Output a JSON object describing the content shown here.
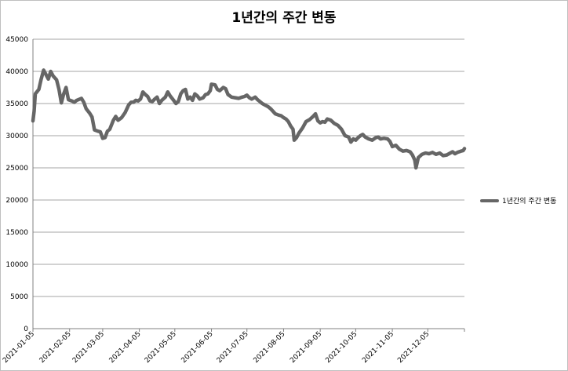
{
  "chart_data": {
    "type": "line",
    "title": "1년간의 주간 변동",
    "xlabel": "",
    "ylabel": "",
    "ylim": [
      0,
      45000
    ],
    "y_ticks": [
      0,
      5000,
      10000,
      15000,
      20000,
      25000,
      30000,
      35000,
      40000,
      45000
    ],
    "x_ticks": [
      "2021-01-05",
      "2021-02-05",
      "2021-03-05",
      "2021-04-05",
      "2021-05-05",
      "2021-06-05",
      "2021-07-05",
      "2021-08-05",
      "2021-09-05",
      "2021-10-05",
      "2021-11-05",
      "2021-12-05"
    ],
    "x_range": [
      "2021-01-05",
      "2022-01-05"
    ],
    "grid": "horizontal",
    "legend": "right",
    "colors": {
      "line": "#666666",
      "grid": "#a6a6a6",
      "axis": "#808080"
    },
    "series": [
      {
        "name": "1년간의 주간 변동",
        "points": [
          [
            "2021-01-05",
            32300
          ],
          [
            "2021-01-06",
            33800
          ],
          [
            "2021-01-07",
            36500
          ],
          [
            "2021-01-10",
            37200
          ],
          [
            "2021-01-12",
            38800
          ],
          [
            "2021-01-14",
            40200
          ],
          [
            "2021-01-16",
            39500
          ],
          [
            "2021-01-18",
            38800
          ],
          [
            "2021-01-20",
            40000
          ],
          [
            "2021-01-22",
            39300
          ],
          [
            "2021-01-25",
            38700
          ],
          [
            "2021-01-27",
            37200
          ],
          [
            "2021-01-29",
            35100
          ],
          [
            "2021-01-31",
            36500
          ],
          [
            "2021-02-02",
            37500
          ],
          [
            "2021-02-04",
            35600
          ],
          [
            "2021-02-07",
            35400
          ],
          [
            "2021-02-09",
            35200
          ],
          [
            "2021-02-11",
            35500
          ],
          [
            "2021-02-15",
            35800
          ],
          [
            "2021-02-17",
            35200
          ],
          [
            "2021-02-19",
            34200
          ],
          [
            "2021-02-22",
            33500
          ],
          [
            "2021-02-24",
            32900
          ],
          [
            "2021-02-26",
            30900
          ],
          [
            "2021-03-01",
            30700
          ],
          [
            "2021-03-03",
            30600
          ],
          [
            "2021-03-05",
            29600
          ],
          [
            "2021-03-07",
            29700
          ],
          [
            "2021-03-09",
            30700
          ],
          [
            "2021-03-11",
            31000
          ],
          [
            "2021-03-14",
            32400
          ],
          [
            "2021-03-16",
            33000
          ],
          [
            "2021-03-18",
            32400
          ],
          [
            "2021-03-21",
            32800
          ],
          [
            "2021-03-24",
            33600
          ],
          [
            "2021-03-27",
            34800
          ],
          [
            "2021-03-29",
            35200
          ],
          [
            "2021-03-31",
            35200
          ],
          [
            "2021-04-02",
            35500
          ],
          [
            "2021-04-04",
            35400
          ],
          [
            "2021-04-06",
            35700
          ],
          [
            "2021-04-08",
            36800
          ],
          [
            "2021-04-10",
            36400
          ],
          [
            "2021-04-12",
            36100
          ],
          [
            "2021-04-14",
            35400
          ],
          [
            "2021-04-16",
            35300
          ],
          [
            "2021-04-18",
            35700
          ],
          [
            "2021-04-20",
            36000
          ],
          [
            "2021-04-22",
            35000
          ],
          [
            "2021-04-24",
            35500
          ],
          [
            "2021-04-27",
            36000
          ],
          [
            "2021-04-29",
            36800
          ],
          [
            "2021-05-01",
            36200
          ],
          [
            "2021-05-04",
            35500
          ],
          [
            "2021-05-06",
            35000
          ],
          [
            "2021-05-08",
            35300
          ],
          [
            "2021-05-10",
            36500
          ],
          [
            "2021-05-12",
            37000
          ],
          [
            "2021-05-14",
            37200
          ],
          [
            "2021-05-16",
            35700
          ],
          [
            "2021-05-18",
            36000
          ],
          [
            "2021-05-20",
            35500
          ],
          [
            "2021-05-22",
            36500
          ],
          [
            "2021-05-24",
            36200
          ],
          [
            "2021-05-26",
            35700
          ],
          [
            "2021-05-29",
            35900
          ],
          [
            "2021-05-31",
            36400
          ],
          [
            "2021-06-02",
            36500
          ],
          [
            "2021-06-04",
            37000
          ],
          [
            "2021-06-05",
            38000
          ],
          [
            "2021-06-08",
            37900
          ],
          [
            "2021-06-10",
            37200
          ],
          [
            "2021-06-12",
            37000
          ],
          [
            "2021-06-15",
            37500
          ],
          [
            "2021-06-17",
            37300
          ],
          [
            "2021-06-19",
            36400
          ],
          [
            "2021-06-22",
            36000
          ],
          [
            "2021-06-25",
            35900
          ],
          [
            "2021-06-28",
            35800
          ],
          [
            "2021-07-01",
            36000
          ],
          [
            "2021-07-03",
            36100
          ],
          [
            "2021-07-05",
            36300
          ],
          [
            "2021-07-07",
            35900
          ],
          [
            "2021-07-09",
            35700
          ],
          [
            "2021-07-12",
            36000
          ],
          [
            "2021-07-14",
            35600
          ],
          [
            "2021-07-16",
            35300
          ],
          [
            "2021-07-18",
            35000
          ],
          [
            "2021-07-20",
            34800
          ],
          [
            "2021-07-23",
            34500
          ],
          [
            "2021-07-25",
            34200
          ],
          [
            "2021-07-27",
            33800
          ],
          [
            "2021-07-29",
            33400
          ],
          [
            "2021-08-01",
            33200
          ],
          [
            "2021-08-03",
            33100
          ],
          [
            "2021-08-05",
            32800
          ],
          [
            "2021-08-07",
            32600
          ],
          [
            "2021-08-09",
            32200
          ],
          [
            "2021-08-11",
            31500
          ],
          [
            "2021-08-13",
            31000
          ],
          [
            "2021-08-14",
            29300
          ],
          [
            "2021-08-16",
            29700
          ],
          [
            "2021-08-18",
            30400
          ],
          [
            "2021-08-21",
            31200
          ],
          [
            "2021-08-24",
            32200
          ],
          [
            "2021-08-27",
            32500
          ],
          [
            "2021-08-30",
            33000
          ],
          [
            "2021-09-01",
            33400
          ],
          [
            "2021-09-03",
            32300
          ],
          [
            "2021-09-05",
            32000
          ],
          [
            "2021-09-07",
            32200
          ],
          [
            "2021-09-09",
            32100
          ],
          [
            "2021-09-11",
            32600
          ],
          [
            "2021-09-14",
            32400
          ],
          [
            "2021-09-17",
            31900
          ],
          [
            "2021-09-20",
            31600
          ],
          [
            "2021-09-23",
            31000
          ],
          [
            "2021-09-26",
            30000
          ],
          [
            "2021-09-29",
            29800
          ],
          [
            "2021-10-01",
            29000
          ],
          [
            "2021-10-03",
            29500
          ],
          [
            "2021-10-05",
            29300
          ],
          [
            "2021-10-07",
            29700
          ],
          [
            "2021-10-09",
            30000
          ],
          [
            "2021-10-11",
            30200
          ],
          [
            "2021-10-13",
            29800
          ],
          [
            "2021-10-16",
            29500
          ],
          [
            "2021-10-19",
            29300
          ],
          [
            "2021-10-22",
            29700
          ],
          [
            "2021-10-24",
            29800
          ],
          [
            "2021-10-26",
            29500
          ],
          [
            "2021-10-29",
            29600
          ],
          [
            "2021-11-01",
            29500
          ],
          [
            "2021-11-03",
            29100
          ],
          [
            "2021-11-05",
            28300
          ],
          [
            "2021-11-08",
            28500
          ],
          [
            "2021-11-11",
            27900
          ],
          [
            "2021-11-14",
            27600
          ],
          [
            "2021-11-17",
            27700
          ],
          [
            "2021-11-20",
            27500
          ],
          [
            "2021-11-22",
            27000
          ],
          [
            "2021-11-24",
            26200
          ],
          [
            "2021-11-25",
            25000
          ],
          [
            "2021-11-27",
            26600
          ],
          [
            "2021-11-30",
            27100
          ],
          [
            "2021-12-03",
            27300
          ],
          [
            "2021-12-06",
            27200
          ],
          [
            "2021-12-09",
            27400
          ],
          [
            "2021-12-12",
            27100
          ],
          [
            "2021-12-15",
            27300
          ],
          [
            "2021-12-18",
            26900
          ],
          [
            "2021-12-21",
            27000
          ],
          [
            "2021-12-24",
            27300
          ],
          [
            "2021-12-26",
            27500
          ],
          [
            "2021-12-28",
            27200
          ],
          [
            "2021-12-30",
            27400
          ],
          [
            "2022-01-02",
            27600
          ],
          [
            "2022-01-04",
            27700
          ],
          [
            "2022-01-05",
            28000
          ]
        ]
      }
    ]
  }
}
